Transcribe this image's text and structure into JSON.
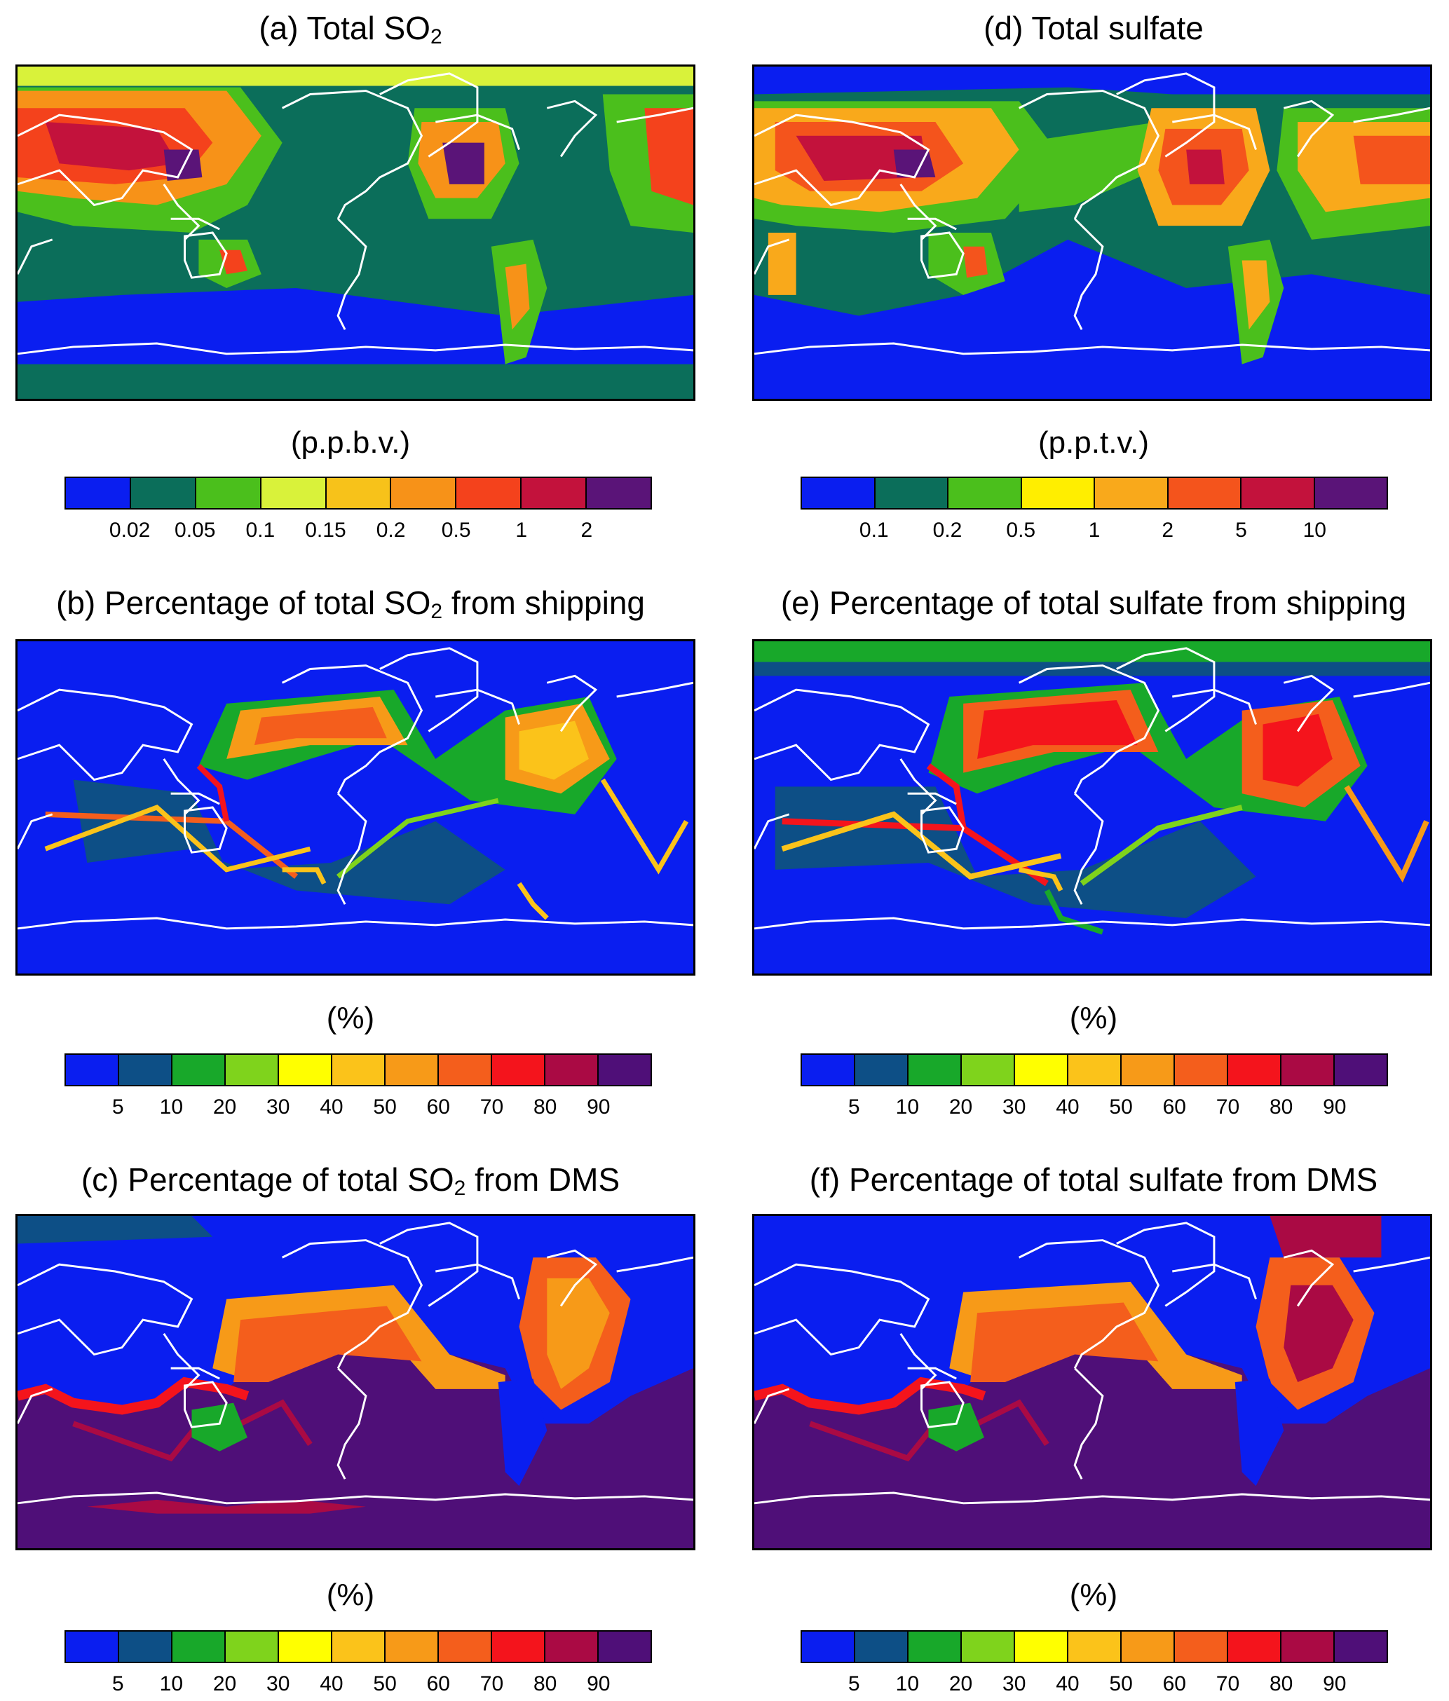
{
  "panels": {
    "a": {
      "title_pre": "(a) Total SO",
      "title_sub": "2",
      "title_post": ""
    },
    "b": {
      "title_pre": "(b) Percentage of total SO",
      "title_sub": "2",
      "title_post": " from shipping"
    },
    "c": {
      "title_pre": "(c) Percentage of total SO",
      "title_sub": "2",
      "title_post": " from DMS"
    },
    "d": {
      "title_pre": "(d) Total sulfate",
      "title_sub": "",
      "title_post": ""
    },
    "e": {
      "title_pre": "(e) Percentage of total sulfate from shipping",
      "title_sub": "",
      "title_post": ""
    },
    "f": {
      "title_pre": "(f) Percentage of total sulfate from DMS",
      "title_sub": "",
      "title_post": ""
    }
  },
  "colorbars": {
    "so2": {
      "unit": "(p.p.b.v.)",
      "colors": [
        "#0a1ef0",
        "#0b6e5a",
        "#4bbf1c",
        "#d9f23a",
        "#f7c21a",
        "#f79218",
        "#f4421c",
        "#c3123c",
        "#5a1478"
      ],
      "ticks": [
        "0.02",
        "0.05",
        "0.1",
        "0.15",
        "0.2",
        "0.5",
        "1",
        "2"
      ]
    },
    "sulfate": {
      "unit": "(p.p.t.v.)",
      "colors": [
        "#0a1ef0",
        "#0b6e5a",
        "#4bbf1c",
        "#ffee00",
        "#f9a91b",
        "#f4541c",
        "#c3123c",
        "#5a1478"
      ],
      "ticks": [
        "0.1",
        "0.2",
        "0.5",
        "1",
        "2",
        "5",
        "10"
      ]
    },
    "percent": {
      "unit": "(%)",
      "colors": [
        "#0a1ef0",
        "#0d4f86",
        "#18a82a",
        "#7fd31c",
        "#ffff00",
        "#fbc31a",
        "#f79a18",
        "#f45e1c",
        "#f4141c",
        "#aa0a44",
        "#4f0f78"
      ],
      "ticks": [
        "5",
        "10",
        "20",
        "30",
        "40",
        "50",
        "60",
        "70",
        "80",
        "90"
      ]
    }
  }
}
